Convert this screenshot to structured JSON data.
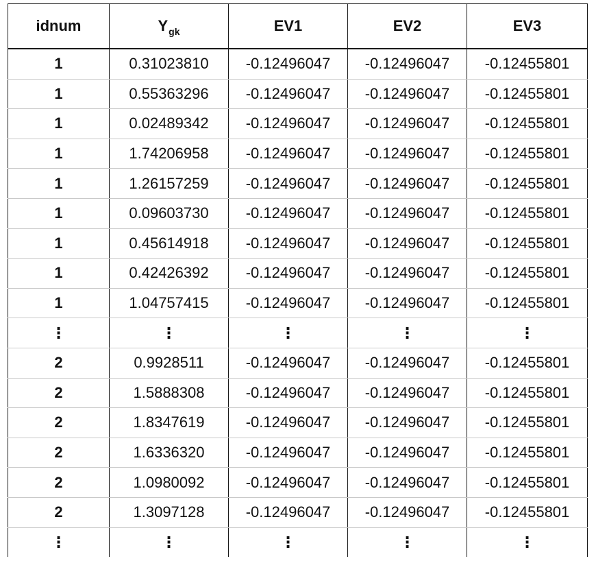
{
  "table": {
    "headers": {
      "idnum": "idnum",
      "y_base": "Y",
      "y_sub": "gk",
      "ev1": "EV1",
      "ev2": "EV2",
      "ev3": "EV3"
    },
    "rows": [
      [
        "1",
        "0.31023810",
        "-0.12496047",
        "-0.12496047",
        "-0.12455801"
      ],
      [
        "1",
        "0.55363296",
        "-0.12496047",
        "-0.12496047",
        "-0.12455801"
      ],
      [
        "1",
        "0.02489342",
        "-0.12496047",
        "-0.12496047",
        "-0.12455801"
      ],
      [
        "1",
        "1.74206958",
        "-0.12496047",
        "-0.12496047",
        "-0.12455801"
      ],
      [
        "1",
        "1.26157259",
        "-0.12496047",
        "-0.12496047",
        "-0.12455801"
      ],
      [
        "1",
        "0.09603730",
        "-0.12496047",
        "-0.12496047",
        "-0.12455801"
      ],
      [
        "1",
        "0.45614918",
        "-0.12496047",
        "-0.12496047",
        "-0.12455801"
      ],
      [
        "1",
        "0.42426392",
        "-0.12496047",
        "-0.12496047",
        "-0.12455801"
      ],
      [
        "1",
        "1.04757415",
        "-0.12496047",
        "-0.12496047",
        "-0.12455801"
      ],
      [
        "⋮",
        "⋮",
        "⋮",
        "⋮",
        "⋮"
      ],
      [
        "2",
        "0.9928511",
        "-0.12496047",
        "-0.12496047",
        "-0.12455801"
      ],
      [
        "2",
        "1.5888308",
        "-0.12496047",
        "-0.12496047",
        "-0.12455801"
      ],
      [
        "2",
        "1.8347619",
        "-0.12496047",
        "-0.12496047",
        "-0.12455801"
      ],
      [
        "2",
        "1.6336320",
        "-0.12496047",
        "-0.12496047",
        "-0.12455801"
      ],
      [
        "2",
        "1.0980092",
        "-0.12496047",
        "-0.12496047",
        "-0.12455801"
      ],
      [
        "2",
        "1.3097128",
        "-0.12496047",
        "-0.12496047",
        "-0.12455801"
      ],
      [
        "⋮",
        "⋮",
        "⋮",
        "⋮",
        "⋮"
      ]
    ]
  }
}
